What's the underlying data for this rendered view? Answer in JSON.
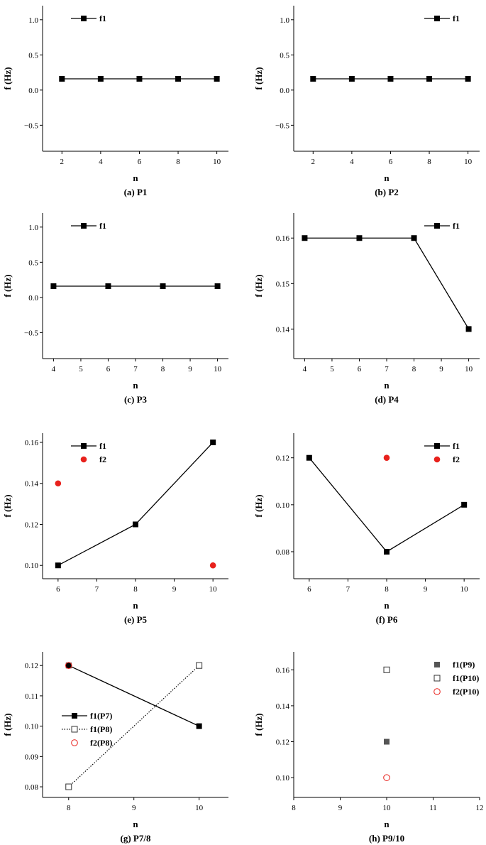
{
  "colors": {
    "line": "#000000",
    "marker": "#000000",
    "red": "#e8211c",
    "gray_marker": "#555555",
    "hollow_red": "#e8211c"
  },
  "chart_data": [
    {
      "type": "line",
      "caption": "(a) P1",
      "xlabel": "n",
      "ylabel": "f (Hz)",
      "xlim": [
        1.0,
        10.6
      ],
      "ylim": [
        -0.87,
        1.2
      ],
      "xticks": [
        2,
        4,
        6,
        8,
        10
      ],
      "xtick_labels": [
        "2",
        "4",
        "6",
        "8",
        "10"
      ],
      "yticks": [
        1.0,
        0.5,
        0.0,
        -0.5
      ],
      "ytick_labels": [
        "1.0",
        "0.5",
        "0.0",
        "−0.5"
      ],
      "legend_position": "top-left",
      "series": [
        {
          "name": "f1",
          "style": "solid-square",
          "x": [
            2,
            4,
            6,
            8,
            10
          ],
          "y": [
            0.16,
            0.16,
            0.16,
            0.16,
            0.16
          ]
        }
      ]
    },
    {
      "type": "line",
      "caption": "(b) P2",
      "xlabel": "n",
      "ylabel": "f (Hz)",
      "xlim": [
        1.0,
        10.6
      ],
      "ylim": [
        -0.87,
        1.2
      ],
      "xticks": [
        2,
        4,
        6,
        8,
        10
      ],
      "xtick_labels": [
        "2",
        "4",
        "6",
        "8",
        "10"
      ],
      "yticks": [
        1.0,
        0.5,
        0.0,
        -0.5
      ],
      "ytick_labels": [
        "1.0",
        "0.5",
        "0.0",
        "−0.5"
      ],
      "legend_position": "top-right",
      "series": [
        {
          "name": "f1",
          "style": "solid-square",
          "x": [
            2,
            4,
            6,
            8,
            10
          ],
          "y": [
            0.16,
            0.16,
            0.16,
            0.16,
            0.16
          ]
        }
      ]
    },
    {
      "type": "line",
      "caption": "(c) P3",
      "xlabel": "n",
      "ylabel": "f (Hz)",
      "xlim": [
        3.6,
        10.4
      ],
      "ylim": [
        -0.87,
        1.2
      ],
      "xticks": [
        4,
        5,
        6,
        7,
        8,
        9,
        10
      ],
      "xtick_labels": [
        "4",
        "5",
        "6",
        "7",
        "8",
        "9",
        "10"
      ],
      "yticks": [
        1.0,
        0.5,
        0.0,
        -0.5
      ],
      "ytick_labels": [
        "1.0",
        "0.5",
        "0.0",
        "−0.5"
      ],
      "legend_position": "top-left",
      "series": [
        {
          "name": "f1",
          "style": "solid-square",
          "x": [
            4,
            6,
            8,
            10
          ],
          "y": [
            0.16,
            0.16,
            0.16,
            0.16
          ]
        }
      ]
    },
    {
      "type": "line",
      "caption": "(d) P4",
      "xlabel": "n",
      "ylabel": "f (Hz)",
      "xlim": [
        3.6,
        10.4
      ],
      "ylim": [
        0.1335,
        0.1655
      ],
      "xticks": [
        4,
        5,
        6,
        7,
        8,
        9,
        10
      ],
      "xtick_labels": [
        "4",
        "5",
        "6",
        "7",
        "8",
        "9",
        "10"
      ],
      "yticks": [
        0.16,
        0.15,
        0.14
      ],
      "ytick_labels": [
        "0.16",
        "0.15",
        "0.14"
      ],
      "legend_position": "top-right",
      "series": [
        {
          "name": "f1",
          "style": "solid-square",
          "x": [
            4,
            6,
            8,
            10
          ],
          "y": [
            0.16,
            0.16,
            0.16,
            0.14
          ]
        }
      ]
    },
    {
      "type": "line",
      "caption": "(e) P5",
      "xlabel": "n",
      "ylabel": "f (Hz)",
      "xlim": [
        5.6,
        10.4
      ],
      "ylim": [
        0.0935,
        0.1645
      ],
      "xticks": [
        6,
        7,
        8,
        9,
        10
      ],
      "xtick_labels": [
        "6",
        "7",
        "8",
        "9",
        "10"
      ],
      "yticks": [
        0.16,
        0.14,
        0.12,
        0.1
      ],
      "ytick_labels": [
        "0.16",
        "0.14",
        "0.12",
        "0.10"
      ],
      "legend_position": "top-left",
      "series": [
        {
          "name": "f1",
          "style": "solid-square",
          "x": [
            6,
            8,
            10
          ],
          "y": [
            0.1,
            0.12,
            0.16
          ]
        },
        {
          "name": "f2",
          "style": "red-dot",
          "x": [
            6,
            10
          ],
          "y": [
            0.14,
            0.1
          ]
        }
      ]
    },
    {
      "type": "line",
      "caption": "(f) P6",
      "xlabel": "n",
      "ylabel": "f (Hz)",
      "xlim": [
        5.6,
        10.4
      ],
      "ylim": [
        0.0685,
        0.1305
      ],
      "xticks": [
        6,
        7,
        8,
        9,
        10
      ],
      "xtick_labels": [
        "6",
        "7",
        "8",
        "9",
        "10"
      ],
      "yticks": [
        0.12,
        0.1,
        0.08
      ],
      "ytick_labels": [
        "0.12",
        "0.10",
        "0.08"
      ],
      "legend_position": "top-right",
      "series": [
        {
          "name": "f1",
          "style": "solid-square",
          "x": [
            6,
            8,
            10
          ],
          "y": [
            0.12,
            0.08,
            0.1
          ]
        },
        {
          "name": "f2",
          "style": "red-dot",
          "x": [
            8
          ],
          "y": [
            0.12
          ]
        }
      ]
    },
    {
      "type": "line",
      "caption": "(g) P7/8",
      "xlabel": "n",
      "ylabel": "f (Hz)",
      "xlim": [
        7.6,
        10.45
      ],
      "ylim": [
        0.0765,
        0.1245
      ],
      "xticks": [
        8,
        9,
        10
      ],
      "xtick_labels": [
        "8",
        "9",
        "10"
      ],
      "yticks": [
        0.12,
        0.11,
        0.1,
        0.09,
        0.08
      ],
      "ytick_labels": [
        "0.12",
        "0.11",
        "0.10",
        "0.09",
        "0.08"
      ],
      "legend_position": "middle-left",
      "series": [
        {
          "name": "f1(P7)",
          "style": "solid-square",
          "x": [
            8,
            10
          ],
          "y": [
            0.12,
            0.1
          ]
        },
        {
          "name": "f1(P8)",
          "style": "dotted-hollow-square",
          "x": [
            8,
            10
          ],
          "y": [
            0.08,
            0.12
          ]
        },
        {
          "name": "f2(P8)",
          "style": "hollow-red-circle",
          "x": [
            8
          ],
          "y": [
            0.12
          ]
        }
      ]
    },
    {
      "type": "scatter",
      "caption": "(h) P9/10",
      "xlabel": "n",
      "ylabel": "f (Hz)",
      "xlim": [
        8,
        12
      ],
      "ylim": [
        0.089,
        0.17
      ],
      "xticks": [
        8,
        9,
        10,
        11,
        12
      ],
      "xtick_labels": [
        "8",
        "9",
        "10",
        "11",
        "12"
      ],
      "yticks": [
        0.16,
        0.14,
        0.12,
        0.1
      ],
      "ytick_labels": [
        "0.16",
        "0.14",
        "0.12",
        "0.10"
      ],
      "legend_position": "top-right",
      "series": [
        {
          "name": "f1(P9)",
          "style": "gray-square",
          "x": [
            10
          ],
          "y": [
            0.12
          ]
        },
        {
          "name": "f1(P10)",
          "style": "hollow-square",
          "x": [
            10
          ],
          "y": [
            0.16
          ]
        },
        {
          "name": "f2(P10)",
          "style": "hollow-red-circle",
          "x": [
            10
          ],
          "y": [
            0.1
          ]
        }
      ]
    }
  ]
}
